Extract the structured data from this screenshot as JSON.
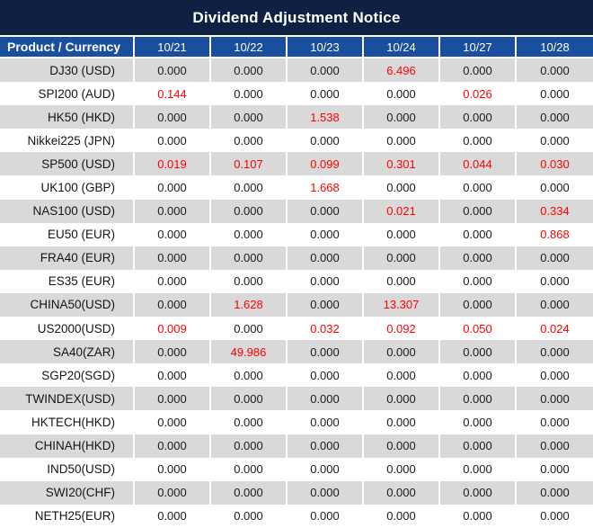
{
  "title": "Dividend Adjustment Notice",
  "colors": {
    "title_bar": "#0e2143",
    "header_row": "#1a4e9e",
    "zebra_row": "#d9d9d9",
    "highlight_value": "#ff0000",
    "value_text": "#1a1a1a",
    "header_text": "#ffffff"
  },
  "table": {
    "product_header": "Product / Currency",
    "date_headers": [
      "10/21",
      "10/22",
      "10/23",
      "10/24",
      "10/27",
      "10/28"
    ],
    "rows": [
      {
        "product": "DJ30 (USD)",
        "values": [
          "0.000",
          "0.000",
          "0.000",
          "6.496",
          "0.000",
          "0.000"
        ],
        "highlight": [
          0,
          0,
          0,
          1,
          0,
          0
        ]
      },
      {
        "product": "SPI200 (AUD)",
        "values": [
          "0.144",
          "0.000",
          "0.000",
          "0.000",
          "0.026",
          "0.000"
        ],
        "highlight": [
          1,
          0,
          0,
          0,
          1,
          0
        ]
      },
      {
        "product": "HK50 (HKD)",
        "values": [
          "0.000",
          "0.000",
          "1.538",
          "0.000",
          "0.000",
          "0.000"
        ],
        "highlight": [
          0,
          0,
          1,
          0,
          0,
          0
        ]
      },
      {
        "product": "Nikkei225 (JPN)",
        "values": [
          "0.000",
          "0.000",
          "0.000",
          "0.000",
          "0.000",
          "0.000"
        ],
        "highlight": [
          0,
          0,
          0,
          0,
          0,
          0
        ]
      },
      {
        "product": "SP500 (USD)",
        "values": [
          "0.019",
          "0.107",
          "0.099",
          "0.301",
          "0.044",
          "0.030"
        ],
        "highlight": [
          1,
          1,
          1,
          1,
          1,
          1
        ]
      },
      {
        "product": "UK100 (GBP)",
        "values": [
          "0.000",
          "0.000",
          "1.668",
          "0.000",
          "0.000",
          "0.000"
        ],
        "highlight": [
          0,
          0,
          1,
          0,
          0,
          0
        ]
      },
      {
        "product": "NAS100 (USD)",
        "values": [
          "0.000",
          "0.000",
          "0.000",
          "0.021",
          "0.000",
          "0.334"
        ],
        "highlight": [
          0,
          0,
          0,
          1,
          0,
          1
        ]
      },
      {
        "product": "EU50 (EUR)",
        "values": [
          "0.000",
          "0.000",
          "0.000",
          "0.000",
          "0.000",
          "0.868"
        ],
        "highlight": [
          0,
          0,
          0,
          0,
          0,
          1
        ]
      },
      {
        "product": "FRA40 (EUR)",
        "values": [
          "0.000",
          "0.000",
          "0.000",
          "0.000",
          "0.000",
          "0.000"
        ],
        "highlight": [
          0,
          0,
          0,
          0,
          0,
          0
        ]
      },
      {
        "product": "ES35 (EUR)",
        "values": [
          "0.000",
          "0.000",
          "0.000",
          "0.000",
          "0.000",
          "0.000"
        ],
        "highlight": [
          0,
          0,
          0,
          0,
          0,
          0
        ]
      },
      {
        "product": "CHINA50(USD)",
        "values": [
          "0.000",
          "1.628",
          "0.000",
          "13.307",
          "0.000",
          "0.000"
        ],
        "highlight": [
          0,
          1,
          0,
          1,
          0,
          0
        ]
      },
      {
        "product": "US2000(USD)",
        "values": [
          "0.009",
          "0.000",
          "0.032",
          "0.092",
          "0.050",
          "0.024"
        ],
        "highlight": [
          1,
          0,
          1,
          1,
          1,
          1
        ]
      },
      {
        "product": "SA40(ZAR)",
        "values": [
          "0.000",
          "49.986",
          "0.000",
          "0.000",
          "0.000",
          "0.000"
        ],
        "highlight": [
          0,
          1,
          0,
          0,
          0,
          0
        ]
      },
      {
        "product": "SGP20(SGD)",
        "values": [
          "0.000",
          "0.000",
          "0.000",
          "0.000",
          "0.000",
          "0.000"
        ],
        "highlight": [
          0,
          0,
          0,
          0,
          0,
          0
        ]
      },
      {
        "product": "TWINDEX(USD)",
        "values": [
          "0.000",
          "0.000",
          "0.000",
          "0.000",
          "0.000",
          "0.000"
        ],
        "highlight": [
          0,
          0,
          0,
          0,
          0,
          0
        ]
      },
      {
        "product": "HKTECH(HKD)",
        "values": [
          "0.000",
          "0.000",
          "0.000",
          "0.000",
          "0.000",
          "0.000"
        ],
        "highlight": [
          0,
          0,
          0,
          0,
          0,
          0
        ]
      },
      {
        "product": "CHINAH(HKD)",
        "values": [
          "0.000",
          "0.000",
          "0.000",
          "0.000",
          "0.000",
          "0.000"
        ],
        "highlight": [
          0,
          0,
          0,
          0,
          0,
          0
        ]
      },
      {
        "product": "IND50(USD)",
        "values": [
          "0.000",
          "0.000",
          "0.000",
          "0.000",
          "0.000",
          "0.000"
        ],
        "highlight": [
          0,
          0,
          0,
          0,
          0,
          0
        ]
      },
      {
        "product": "SWI20(CHF)",
        "values": [
          "0.000",
          "0.000",
          "0.000",
          "0.000",
          "0.000",
          "0.000"
        ],
        "highlight": [
          0,
          0,
          0,
          0,
          0,
          0
        ]
      },
      {
        "product": "NETH25(EUR)",
        "values": [
          "0.000",
          "0.000",
          "0.000",
          "0.000",
          "0.000",
          "0.000"
        ],
        "highlight": [
          0,
          0,
          0,
          0,
          0,
          0
        ]
      }
    ]
  }
}
